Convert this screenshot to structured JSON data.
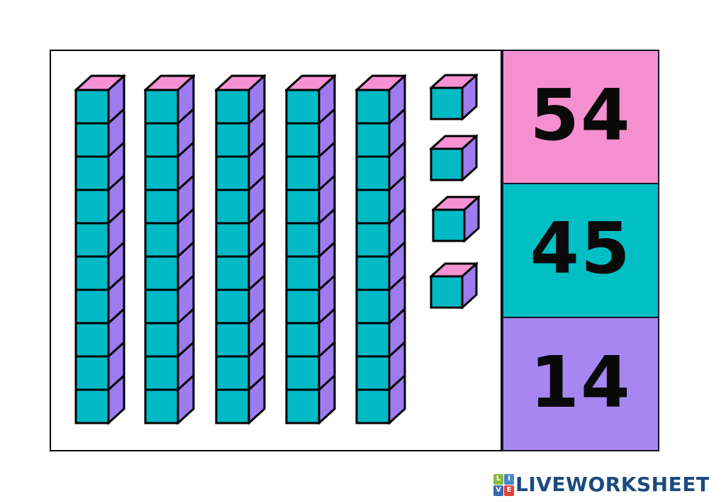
{
  "worksheet": {
    "blocks": {
      "tens_rods_count": 5,
      "cubes_per_rod": 10,
      "ones_cubes_count": 4,
      "colors": {
        "front": "#00BAC6",
        "side": "#9E7CF0",
        "top": "#F592D3",
        "outline": "#000000"
      }
    },
    "answers": [
      {
        "label": "54",
        "bg": "#F48FD0"
      },
      {
        "label": "45",
        "bg": "#00BFC4"
      },
      {
        "label": "14",
        "bg": "#A687F2"
      }
    ]
  },
  "branding": {
    "wordmark": "LIVEWORKSHEETS",
    "wordmark_color": "#1B4A7D",
    "icon_letters": [
      {
        "letter": "L",
        "bg": "#86BC42"
      },
      {
        "letter": "I",
        "bg": "#4A86C8"
      },
      {
        "letter": "V",
        "bg": "#3A67AE"
      },
      {
        "letter": "E",
        "bg": "#E04438"
      }
    ]
  }
}
